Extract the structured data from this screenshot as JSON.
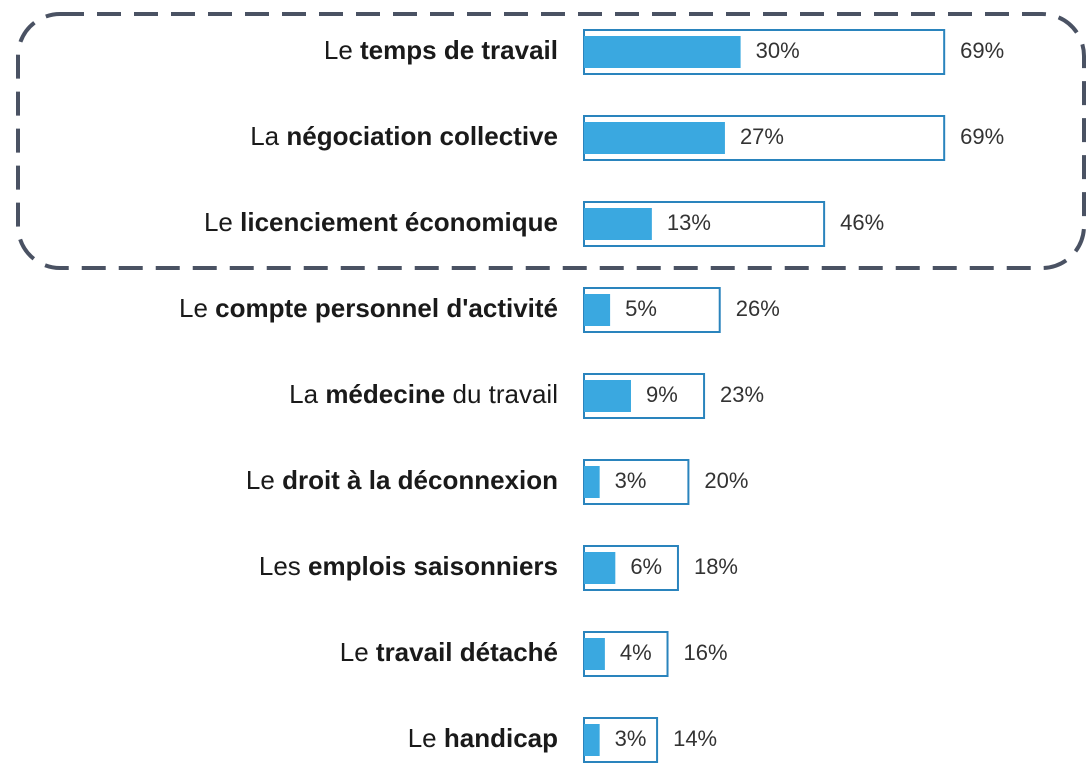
{
  "chart_data": {
    "type": "bar",
    "orientation": "horizontal",
    "categories": [
      [
        "Le ",
        "temps de travail"
      ],
      [
        "La ",
        "négociation collective"
      ],
      [
        "Le ",
        "licenciement économique"
      ],
      [
        "Le ",
        "compte personnel d'activité"
      ],
      [
        "La ",
        "médecine",
        " du travail"
      ],
      [
        "Le ",
        "droit à la déconnexion"
      ],
      [
        "Les ",
        "emplois saisonniers"
      ],
      [
        "Le ",
        "travail détaché"
      ],
      [
        "Le ",
        "handicap"
      ]
    ],
    "series": [
      {
        "color": "#3aa8e0",
        "style": "filled",
        "values": [
          30,
          27,
          13,
          5,
          9,
          3,
          6,
          4,
          3
        ],
        "value_labels": [
          "30%",
          "27%",
          "13%",
          "5%",
          "9%",
          "3%",
          "6%",
          "4%",
          "3%"
        ]
      },
      {
        "color": "#2a84bd",
        "style": "outline",
        "values": [
          69,
          69,
          46,
          26,
          23,
          20,
          18,
          16,
          14
        ],
        "value_labels": [
          "69%",
          "69%",
          "46%",
          "26%",
          "23%",
          "20%",
          "18%",
          "16%",
          "14%"
        ]
      }
    ]
  }
}
